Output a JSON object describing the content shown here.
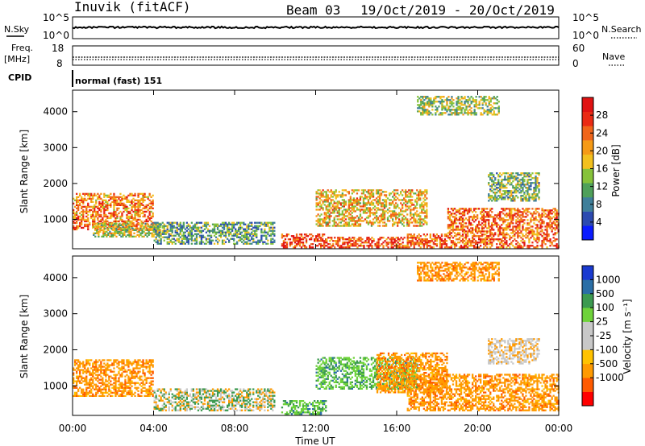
{
  "header": {
    "station": "Inuvik (fitACF)",
    "beam": "Beam 03",
    "date_range": "19/Oct/2019 - 20/Oct/2019"
  },
  "panels": {
    "nsky": {
      "left_label": "N.Sky",
      "right_label": "N.Search",
      "left_ticks": [
        "10^5",
        "10^0"
      ],
      "right_ticks": [
        "10^5",
        "10^0"
      ],
      "line_style": "solid"
    },
    "freq": {
      "left_label_1": "Freq.",
      "left_label_2": "[MHz]",
      "right_label": "Nave",
      "left_ticks": [
        "18",
        "8"
      ],
      "right_ticks": [
        "60",
        "0"
      ]
    },
    "cpid": {
      "label": "CPID",
      "mode": "normal (fast) 151"
    }
  },
  "colors": {
    "power_scale": [
      "#0a1bff",
      "#2c4ab0",
      "#3f7f9a",
      "#4fa05a",
      "#86c23a",
      "#f2c01e",
      "#f59a16",
      "#f0651a",
      "#ea2a14",
      "#e01212"
    ],
    "velocity_scale": [
      "#ff0000",
      "#ff5a00",
      "#ff9a00",
      "#ffc200",
      "#c8c8c8",
      "#c8c8c8",
      "#6ed23a",
      "#3c9a50",
      "#2a6ea6",
      "#1a3ad0"
    ]
  },
  "chart_data": [
    {
      "type": "heatmap",
      "title": "",
      "ylabel": "Slant Range [km]",
      "xlabel": "",
      "ylim": [
        180,
        4600
      ],
      "y_ticks": [
        "1000",
        "2000",
        "3000",
        "4000"
      ],
      "y_tick_values": [
        1000,
        2000,
        3000,
        4000
      ],
      "x_range_hours": [
        0,
        24
      ],
      "colorbar": {
        "label": "Power [dB]",
        "range": [
          0,
          32
        ],
        "ticks": [
          "4",
          "8",
          "12",
          "16",
          "20",
          "24",
          "28"
        ],
        "tick_values": [
          4,
          8,
          12,
          16,
          20,
          24,
          28
        ]
      },
      "echo_regions": [
        {
          "t0": 0.0,
          "t1": 4.0,
          "r0": 700,
          "r1": 1700,
          "level": 0.7
        },
        {
          "t0": 1.0,
          "t1": 4.3,
          "r0": 500,
          "r1": 900,
          "level": 0.5
        },
        {
          "t0": 4.0,
          "t1": 10.0,
          "r0": 300,
          "r1": 900,
          "level": 0.35
        },
        {
          "t0": 10.3,
          "t1": 12.5,
          "r0": 200,
          "r1": 600,
          "level": 0.85
        },
        {
          "t0": 12.5,
          "t1": 16.5,
          "r0": 200,
          "r1": 500,
          "level": 0.8
        },
        {
          "t0": 12.0,
          "t1": 17.5,
          "r0": 800,
          "r1": 1800,
          "level": 0.6
        },
        {
          "t0": 16.5,
          "t1": 24.0,
          "r0": 200,
          "r1": 600,
          "level": 0.75
        },
        {
          "t0": 18.5,
          "t1": 24.0,
          "r0": 600,
          "r1": 1300,
          "level": 0.75
        },
        {
          "t0": 17.0,
          "t1": 21.0,
          "r0": 3900,
          "r1": 4400,
          "level": 0.45
        },
        {
          "t0": 20.5,
          "t1": 23.0,
          "r0": 1500,
          "r1": 2300,
          "level": 0.4
        }
      ]
    },
    {
      "type": "heatmap",
      "title": "",
      "ylabel": "Slant Range [km]",
      "xlabel": "Time UT",
      "ylim": [
        180,
        4600
      ],
      "y_ticks": [
        "1000",
        "2000",
        "3000",
        "4000"
      ],
      "y_tick_values": [
        1000,
        2000,
        3000,
        4000
      ],
      "x_ticks": [
        "00:00",
        "04:00",
        "08:00",
        "12:00",
        "16:00",
        "20:00",
        "00:00"
      ],
      "x_tick_values": [
        0,
        4,
        8,
        12,
        16,
        20,
        24
      ],
      "colorbar": {
        "label": "Velocity [m s⁻¹]",
        "ticks": [
          "1000",
          "500",
          "100",
          "25",
          "-25",
          "-100",
          "-500",
          "-1000"
        ]
      },
      "echo_regions": [
        {
          "t0": 0.0,
          "t1": 4.0,
          "r0": 700,
          "r1": 1700,
          "kind": "neg"
        },
        {
          "t0": 4.0,
          "t1": 10.0,
          "r0": 300,
          "r1": 900,
          "kind": "mix"
        },
        {
          "t0": 10.3,
          "t1": 12.5,
          "r0": 200,
          "r1": 600,
          "kind": "pos"
        },
        {
          "t0": 12.0,
          "t1": 17.0,
          "r0": 900,
          "r1": 1800,
          "kind": "pos"
        },
        {
          "t0": 15.0,
          "t1": 18.5,
          "r0": 800,
          "r1": 1900,
          "kind": "neg"
        },
        {
          "t0": 16.5,
          "t1": 24.0,
          "r0": 300,
          "r1": 1300,
          "kind": "neg"
        },
        {
          "t0": 17.0,
          "t1": 21.0,
          "r0": 3900,
          "r1": 4400,
          "kind": "neg"
        },
        {
          "t0": 20.5,
          "t1": 23.0,
          "r0": 1600,
          "r1": 2300,
          "kind": "gray"
        }
      ]
    }
  ]
}
